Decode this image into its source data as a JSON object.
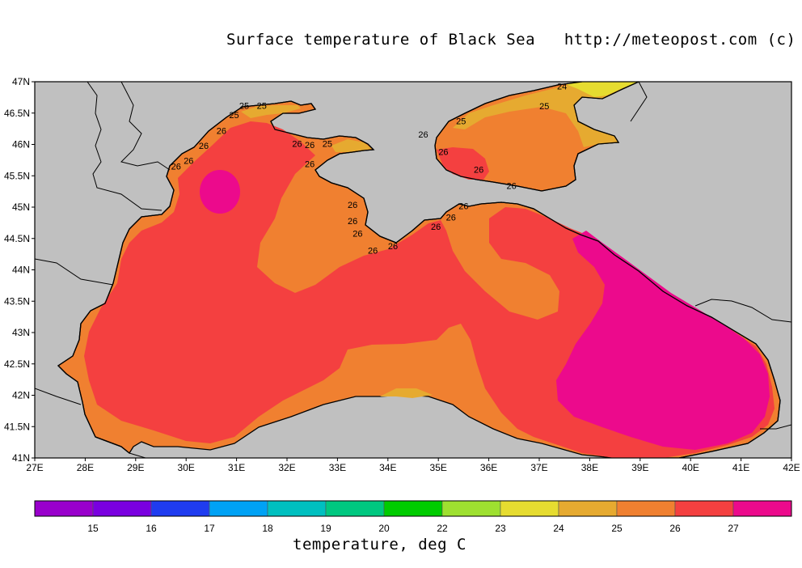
{
  "title": "Surface temperature of Black Sea   http://meteopost.com (c)",
  "colorbar_title": "temperature, deg C",
  "latitude_ticks": [
    "47N",
    "46.5N",
    "46N",
    "45.5N",
    "45N",
    "44.5N",
    "44N",
    "43.5N",
    "43N",
    "42.5N",
    "42N",
    "41.5N",
    "41N"
  ],
  "longitude_ticks": [
    "27E",
    "28E",
    "29E",
    "30E",
    "31E",
    "32E",
    "33E",
    "34E",
    "35E",
    "36E",
    "37E",
    "38E",
    "39E",
    "40E",
    "41E",
    "42E"
  ],
  "colorbar": {
    "colors": [
      "#9900cc",
      "#7a00e0",
      "#1f3cf0",
      "#00a2f5",
      "#00c0c0",
      "#00c880",
      "#00cc00",
      "#9ee030",
      "#e6dc30",
      "#e6aa30",
      "#f08030",
      "#f44040",
      "#ec0a8c"
    ],
    "labels": [
      "15",
      "16",
      "17",
      "18",
      "19",
      "20",
      "22",
      "23",
      "24",
      "25",
      "26",
      "27"
    ]
  },
  "colors": {
    "land": "#c0c0c0",
    "t24": "#e6dc30",
    "t25": "#e6aa30",
    "t26": "#f08030",
    "t27": "#f44040",
    "t28": "#ec0a8c"
  },
  "contour_labels": [
    {
      "text": "24",
      "lon": 37.45,
      "lat": 46.88
    },
    {
      "text": "25",
      "lon": 37.1,
      "lat": 46.56
    },
    {
      "text": "25",
      "lon": 35.45,
      "lat": 46.32
    },
    {
      "text": "26",
      "lon": 34.7,
      "lat": 46.11
    },
    {
      "text": "26",
      "lon": 35.1,
      "lat": 45.83
    },
    {
      "text": "26",
      "lon": 35.8,
      "lat": 45.55
    },
    {
      "text": "26",
      "lon": 36.45,
      "lat": 45.29
    },
    {
      "text": "25",
      "lon": 31.15,
      "lat": 46.57
    },
    {
      "text": "25",
      "lon": 31.5,
      "lat": 46.57
    },
    {
      "text": "25",
      "lon": 30.95,
      "lat": 46.42
    },
    {
      "text": "26",
      "lon": 30.7,
      "lat": 46.17
    },
    {
      "text": "26",
      "lon": 30.35,
      "lat": 45.93
    },
    {
      "text": "26",
      "lon": 30.05,
      "lat": 45.69
    },
    {
      "text": "26",
      "lon": 29.8,
      "lat": 45.6
    },
    {
      "text": "26",
      "lon": 32.2,
      "lat": 45.96
    },
    {
      "text": "26",
      "lon": 32.45,
      "lat": 45.94
    },
    {
      "text": "25",
      "lon": 32.8,
      "lat": 45.96
    },
    {
      "text": "26",
      "lon": 32.45,
      "lat": 45.64
    },
    {
      "text": "26",
      "lon": 33.3,
      "lat": 44.99
    },
    {
      "text": "26",
      "lon": 33.3,
      "lat": 44.73
    },
    {
      "text": "26",
      "lon": 33.4,
      "lat": 44.53
    },
    {
      "text": "26",
      "lon": 33.7,
      "lat": 44.26
    },
    {
      "text": "26",
      "lon": 34.1,
      "lat": 44.33
    },
    {
      "text": "26",
      "lon": 34.95,
      "lat": 44.64
    },
    {
      "text": "26",
      "lon": 35.25,
      "lat": 44.79
    },
    {
      "text": "26",
      "lon": 35.5,
      "lat": 44.97
    }
  ]
}
